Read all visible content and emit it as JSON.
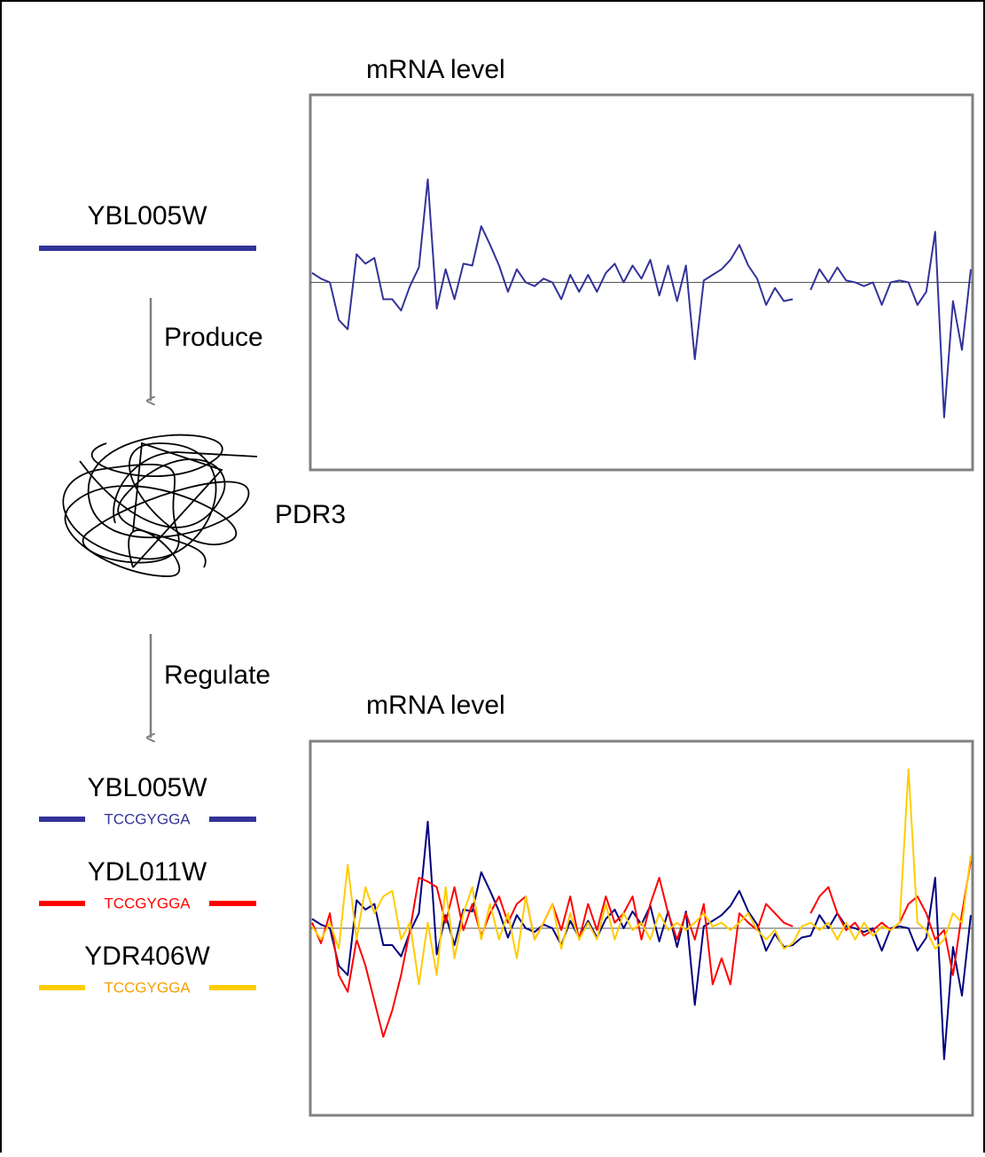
{
  "source": {
    "label": "YBL005W",
    "color": "#333399"
  },
  "produce": "Produce",
  "protein": "PDR3",
  "regulate": "Regulate",
  "targets": [
    {
      "label": "YBL005W",
      "motif": "TCCGYGGA",
      "color": "#333399"
    },
    {
      "label": "YDL011W",
      "motif": "TCCGYGGA",
      "color": "#ff0000"
    },
    {
      "label": "YDR406W",
      "motif": "TCCGYGGA",
      "color": "#ffcc00",
      "motif_color": "#f5a000"
    }
  ],
  "chart_data": [
    {
      "type": "line",
      "title": "mRNA level",
      "ylim": [
        -1,
        1
      ],
      "series": [
        {
          "color": "#333399",
          "values": [
            0.05,
            0.02,
            0.0,
            -0.2,
            -0.25,
            0.15,
            0.1,
            0.13,
            -0.09,
            -0.09,
            -0.15,
            -0.02,
            0.08,
            0.55,
            -0.14,
            0.07,
            -0.09,
            0.1,
            0.09,
            0.3,
            0.2,
            0.09,
            -0.05,
            0.07,
            0.0,
            -0.02,
            0.02,
            0.0,
            -0.09,
            0.04,
            -0.05,
            0.04,
            -0.05,
            0.05,
            0.1,
            0.0,
            0.09,
            0.02,
            0.12,
            -0.07,
            0.09,
            -0.1,
            0.09,
            -0.41,
            0.01,
            0.04,
            0.07,
            0.12,
            0.2,
            0.09,
            0.02,
            -0.12,
            -0.03,
            -0.1,
            -0.09,
            null,
            -0.04,
            0.07,
            0.0,
            0.08,
            0.01,
            0.0,
            -0.02,
            0.0,
            -0.12,
            0.0,
            0.01,
            0.0,
            -0.12,
            -0.05,
            0.27,
            -0.72,
            -0.1,
            -0.36,
            0.07
          ]
        }
      ]
    },
    {
      "type": "line",
      "title": "mRNA level",
      "ylim": [
        -1,
        1
      ],
      "series": [
        {
          "color": "#000080",
          "values": [
            0.05,
            0.02,
            0.0,
            -0.2,
            -0.25,
            0.15,
            0.1,
            0.13,
            -0.09,
            -0.09,
            -0.15,
            -0.02,
            0.08,
            0.57,
            -0.14,
            0.07,
            -0.09,
            0.1,
            0.09,
            0.3,
            0.2,
            0.09,
            -0.05,
            0.07,
            0.0,
            -0.02,
            0.02,
            0.0,
            -0.09,
            0.04,
            -0.05,
            0.04,
            -0.05,
            0.05,
            0.1,
            0.0,
            0.09,
            0.02,
            0.12,
            -0.07,
            0.09,
            -0.1,
            0.09,
            -0.41,
            0.01,
            0.04,
            0.07,
            0.12,
            0.2,
            0.09,
            0.02,
            -0.12,
            -0.03,
            -0.1,
            -0.09,
            -0.05,
            -0.04,
            0.07,
            0.0,
            0.08,
            0.01,
            0.0,
            -0.02,
            0.0,
            -0.12,
            0.0,
            0.01,
            0.0,
            -0.12,
            -0.05,
            0.27,
            -0.7,
            -0.1,
            -0.36,
            0.07
          ]
        },
        {
          "color": "#ff0000",
          "values": [
            0.03,
            -0.08,
            0.08,
            -0.25,
            -0.34,
            -0.06,
            -0.2,
            -0.39,
            -0.58,
            -0.44,
            -0.25,
            -0.01,
            0.27,
            0.25,
            0.22,
            0.03,
            0.22,
            -0.01,
            0.13,
            -0.04,
            0.08,
            0.17,
            0.03,
            0.13,
            0.17,
            -0.06,
            0.03,
            0.13,
            -0.01,
            0.17,
            -0.06,
            0.13,
            -0.01,
            0.17,
            0.03,
            0.08,
            0.17,
            -0.06,
            0.13,
            0.27,
            0.08,
            -0.06,
            0.08,
            -0.06,
            0.13,
            -0.3,
            -0.16,
            -0.3,
            0.08,
            0.03,
            -0.01,
            0.13,
            0.08,
            0.03,
            0.01,
            null,
            0.08,
            0.17,
            0.22,
            0.08,
            -0.01,
            0.03,
            -0.04,
            -0.01,
            0.03,
            -0.01,
            0.03,
            0.13,
            0.17,
            0.08,
            -0.06,
            -0.01,
            -0.25,
            0.08,
            0.36
          ]
        },
        {
          "color": "#ffcc00",
          "values": [
            0.01,
            -0.06,
            0.03,
            -0.11,
            0.34,
            -0.06,
            0.22,
            0.08,
            0.17,
            0.2,
            -0.06,
            0.03,
            -0.3,
            0.03,
            -0.25,
            0.22,
            -0.16,
            0.08,
            0.22,
            -0.06,
            0.13,
            -0.06,
            0.08,
            -0.16,
            0.17,
            -0.06,
            0.03,
            0.13,
            -0.11,
            0.08,
            -0.06,
            0.03,
            -0.06,
            0.13,
            -0.06,
            0.08,
            -0.01,
            0.03,
            -0.06,
            0.08,
            -0.01,
            0.03,
            -0.01,
            0.03,
            0.08,
            0.01,
            0.03,
            -0.01,
            0.03,
            0.08,
            -0.01,
            -0.06,
            -0.01,
            -0.11,
            -0.08,
            0.01,
            0.03,
            -0.01,
            0.03,
            -0.06,
            0.03,
            -0.06,
            0.03,
            -0.04,
            0.01,
            -0.01,
            0.03,
            0.85,
            0.03,
            -0.01,
            -0.11,
            -0.06,
            0.08,
            0.03,
            0.39
          ]
        }
      ]
    }
  ]
}
